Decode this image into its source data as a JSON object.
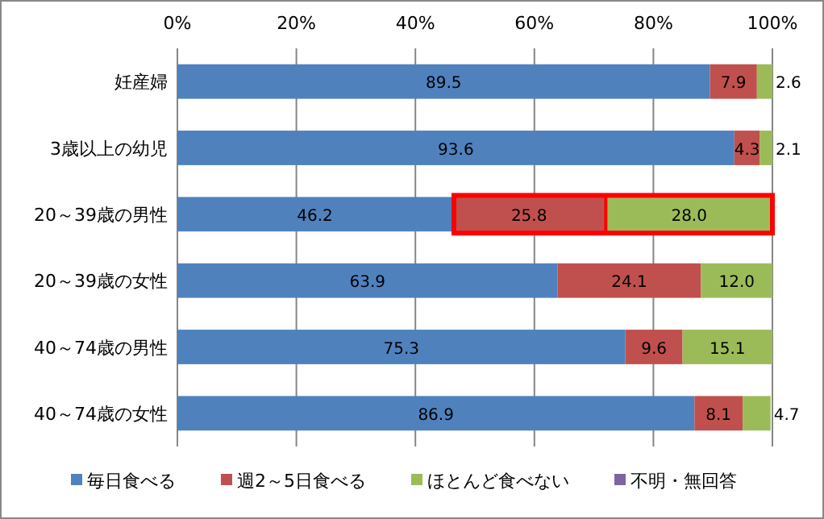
{
  "chart_data": {
    "type": "bar",
    "orientation": "horizontal",
    "stacked": true,
    "categories": [
      "妊産婦",
      "3歳以上の幼児",
      "20～39歳の男性",
      "20～39歳の女性",
      "40～74歳の男性",
      "40～74歳の女性"
    ],
    "series": [
      {
        "name": "毎日食べる",
        "color": "#4f81bd",
        "values": [
          89.5,
          93.6,
          46.2,
          63.9,
          75.3,
          86.9
        ],
        "value_labels": [
          "89.5",
          "93.6",
          "46.2",
          "63.9",
          "75.3",
          "86.9"
        ]
      },
      {
        "name": "週2～5日食べる",
        "color": "#c0504d",
        "values": [
          7.9,
          4.3,
          25.8,
          24.1,
          9.6,
          8.1
        ],
        "value_labels": [
          "7.9",
          "4.3",
          "25.8",
          "24.1",
          "9.6",
          "8.1"
        ]
      },
      {
        "name": "ほとんど食べない",
        "color": "#9bbb59",
        "values": [
          2.6,
          2.1,
          28.0,
          12.0,
          15.1,
          4.7
        ],
        "value_labels": [
          "2.6",
          "2.1",
          "28.0",
          "12.0",
          "15.1",
          "4.7"
        ]
      },
      {
        "name": "不明・無回答",
        "color": "#8064a2",
        "values": [
          null,
          null,
          null,
          null,
          null,
          null
        ]
      }
    ],
    "xlim": [
      0,
      100
    ],
    "xticks": [
      {
        "value": 0,
        "label": "0%"
      },
      {
        "value": 20,
        "label": "20%"
      },
      {
        "value": 40,
        "label": "40%"
      },
      {
        "value": 60,
        "label": "60%"
      },
      {
        "value": 80,
        "label": "80%"
      },
      {
        "value": 100,
        "label": "100%"
      }
    ],
    "grid": "x",
    "legend": "bottom"
  }
}
